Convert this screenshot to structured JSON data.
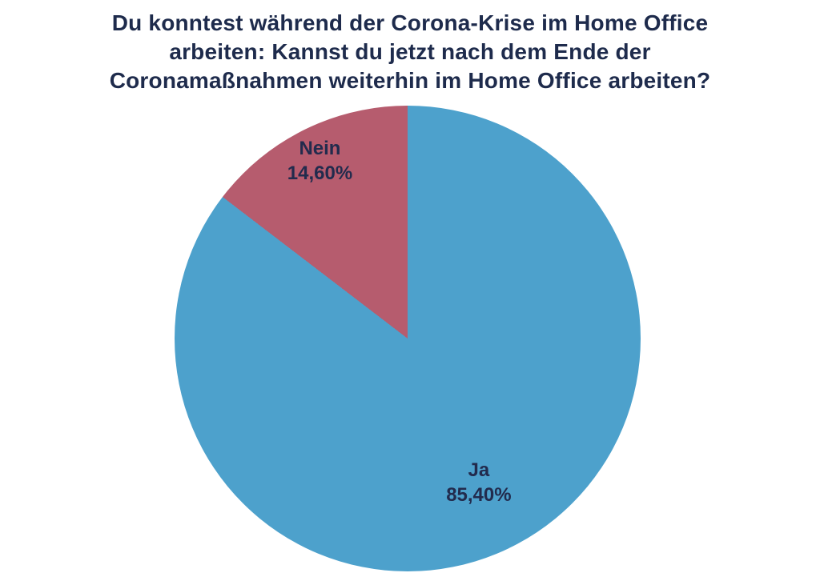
{
  "page": {
    "background_color": "#ffffff"
  },
  "chart_data": {
    "type": "pie",
    "title": "Du konntest während der Corona-Krise im Home Office arbeiten: Kannst du jetzt nach dem Ende der Coronamaßnahmen weiterhin im Home Office arbeiten?",
    "title_lines": [
      "Du konntest während der Corona-Krise im Home Office",
      "arbeiten: Kannst du jetzt nach dem Ende der",
      "Coronamaßnahmen weiterhin im Home Office arbeiten?"
    ],
    "title_color": "#1e2b4c",
    "label_color": "#222b4d",
    "legend": "none",
    "start_angle_deg": 0,
    "direction": "clockwise",
    "slices": [
      {
        "label": "Ja",
        "value": 85.4,
        "display": "85,40%",
        "color": "#4da1cc",
        "label_radius": 0.69
      },
      {
        "label": "Nein",
        "value": 14.6,
        "display": "14,60%",
        "color": "#b65c6e",
        "label_radius": 0.85
      }
    ]
  }
}
